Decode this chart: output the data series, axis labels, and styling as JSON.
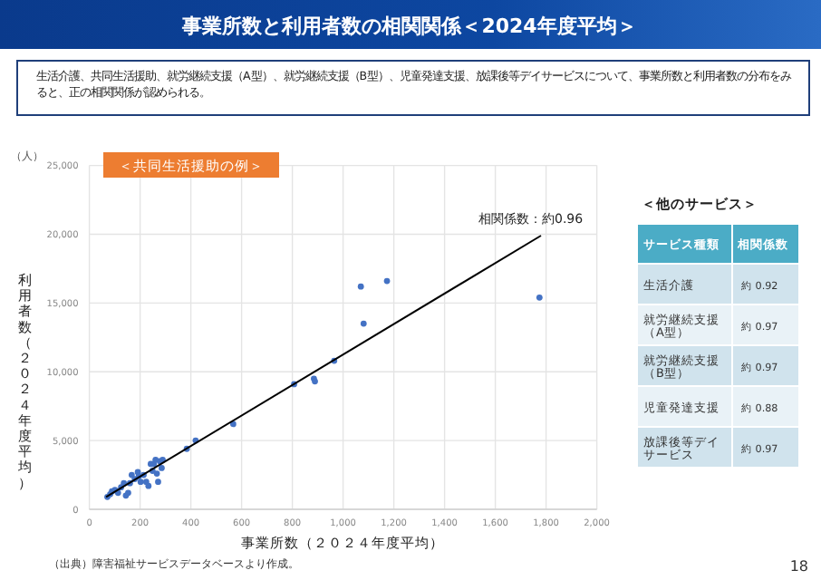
{
  "chart_data": [
    {
      "type": "scatter",
      "title": "事業所数と利用者数の相関関係＜2024年度平均＞",
      "subtitle": "生活介護、共同生活援助、就労継続支援（A型）、就労継続支援（B型）、児童発達支援、放課後等デイサービスについて、事業所数と利用者数の分布をみると、正の相関関係が認められる。",
      "xlabel": "事業所数（２０２４年度平均）",
      "ylabel": "利用者数（２０２４年度平均）",
      "annotations": [
        "＜共同生活援助の例＞",
        "（人）",
        "相関係数：約0.96",
        "（出典）障害福祉サービスデータベースより作成。",
        "18"
      ],
      "xlim": [
        0,
        2000
      ],
      "xticks": [
        0,
        200,
        400,
        600,
        800,
        {
          "value": 1000,
          "label": "1,000"
        },
        {
          "value": 1200,
          "label": "1,200"
        },
        {
          "value": 1400,
          "label": "1,400"
        },
        {
          "value": 1600,
          "label": "1,600"
        },
        {
          "value": 1800,
          "label": "1,800"
        },
        {
          "value": 2000,
          "label": "2,000"
        }
      ],
      "ylim": [
        0,
        25000
      ],
      "yticks": [
        0,
        {
          "value": 5000,
          "label": "5,000"
        },
        {
          "value": 10000,
          "label": "10,000"
        },
        {
          "value": 15000,
          "label": "15,000"
        },
        {
          "value": 20000,
          "label": "20,000"
        },
        {
          "value": 25000,
          "label": "25,000"
        }
      ],
      "grid": true,
      "series": [
        {
          "type": "scatter",
          "color": "#4472c4",
          "marker": "circle",
          "x": [
            71,
            82,
            89,
            101,
            113,
            125,
            136,
            144,
            153,
            160,
            167,
            179,
            191,
            195,
            202,
            214,
            224,
            233,
            242,
            249,
            254,
            261,
            266,
            271,
            278,
            285,
            289,
            384,
            419,
            567,
            807,
            885,
            889,
            965,
            1070,
            1081,
            1173,
            1774
          ],
          "values": [
            900,
            1100,
            1300,
            1400,
            1200,
            1600,
            1900,
            1000,
            1200,
            1900,
            2500,
            2200,
            2700,
            2400,
            2000,
            2500,
            2000,
            1700,
            3300,
            2800,
            3300,
            3600,
            2600,
            2000,
            3500,
            3000,
            3600,
            4400,
            5000,
            6200,
            9100,
            9500,
            9300,
            10800,
            16200,
            13500,
            16600,
            15400
          ]
        },
        {
          "type": "line",
          "color": "#000000",
          "marker": "none",
          "x": [
            66,
            1780
          ],
          "values": [
            900,
            19900
          ]
        }
      ]
    },
    {
      "type": "other",
      "title": "＜他のサービス＞",
      "xlabel": "サービス種類",
      "ylabel": "相関係数",
      "categories": [
        "生活介護",
        "就労継続支援（A型）",
        "就労継続支援（B型）",
        "児童発達支援",
        "放課後等デイサービス"
      ],
      "annotations": [
        "約 0.92",
        "約 0.97",
        "約 0.97",
        "約 0.88",
        "約 0.97"
      ]
    }
  ]
}
